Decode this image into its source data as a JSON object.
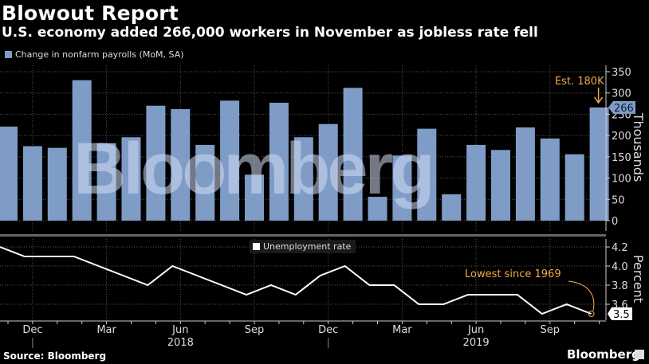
{
  "header": {
    "title": "Blowout Report",
    "subtitle": "U.S. economy added 266,000 workers in November as jobless rate fell"
  },
  "legend": {
    "payrolls": "Change in nonfarm payrolls (MoM, SA)",
    "unemployment": "Unemployment rate"
  },
  "annotations": {
    "estimate": "Est. 180K",
    "latest_payrolls": "266",
    "lowest": "Lowest since 1969",
    "latest_rate": "3.5"
  },
  "axes": {
    "top_ylabel": "Thousands",
    "top_ticks": [
      "350",
      "300",
      "250",
      "200",
      "150",
      "100",
      "50",
      "0"
    ],
    "bottom_ylabel": "Percent",
    "bottom_ticks": [
      "4.2",
      "4.0",
      "3.8",
      "3.6"
    ],
    "x_ticks": [
      "Dec",
      "Mar",
      "Jun",
      "Sep",
      "Dec",
      "Mar",
      "Jun",
      "Sep"
    ],
    "x_years": [
      "2018",
      "2019"
    ]
  },
  "footer": {
    "source": "Source: Bloomberg",
    "brand": "Bloomberg"
  },
  "watermark": "Bloomberg",
  "colors": {
    "bar": "#7f9cc7",
    "accent": "#f0a94a",
    "line": "#ffffff"
  },
  "chart_data": [
    {
      "type": "bar",
      "title": "Change in nonfarm payrolls (MoM, SA)",
      "ylabel": "Thousands",
      "ylim": [
        0,
        350
      ],
      "categories": [
        "Nov 2017",
        "Dec 2017",
        "Jan 2018",
        "Feb 2018",
        "Mar 2018",
        "Apr 2018",
        "May 2018",
        "Jun 2018",
        "Jul 2018",
        "Aug 2018",
        "Sep 2018",
        "Oct 2018",
        "Nov 2018",
        "Dec 2018",
        "Jan 2019",
        "Feb 2019",
        "Mar 2019",
        "Apr 2019",
        "May 2019",
        "Jun 2019",
        "Jul 2019",
        "Aug 2019",
        "Sep 2019",
        "Oct 2019",
        "Nov 2019"
      ],
      "values": [
        221,
        175,
        171,
        330,
        182,
        196,
        270,
        262,
        178,
        282,
        108,
        277,
        196,
        227,
        312,
        56,
        153,
        216,
        62,
        178,
        166,
        219,
        193,
        156,
        266
      ],
      "annotations": [
        "Est. 180K (Nov 2019)",
        "266 (latest)"
      ]
    },
    {
      "type": "line",
      "title": "Unemployment rate",
      "ylabel": "Percent",
      "ylim": [
        3.5,
        4.2
      ],
      "categories": [
        "Nov 2017",
        "Dec 2017",
        "Jan 2018",
        "Feb 2018",
        "Mar 2018",
        "Apr 2018",
        "May 2018",
        "Jun 2018",
        "Jul 2018",
        "Aug 2018",
        "Sep 2018",
        "Oct 2018",
        "Nov 2018",
        "Dec 2018",
        "Jan 2019",
        "Feb 2019",
        "Mar 2019",
        "Apr 2019",
        "May 2019",
        "Jun 2019",
        "Jul 2019",
        "Aug 2019",
        "Sep 2019",
        "Oct 2019",
        "Nov 2019"
      ],
      "values": [
        4.2,
        4.1,
        4.1,
        4.1,
        4.0,
        3.9,
        3.8,
        4.0,
        3.9,
        3.8,
        3.7,
        3.8,
        3.7,
        3.9,
        4.0,
        3.8,
        3.8,
        3.6,
        3.6,
        3.7,
        3.7,
        3.7,
        3.5,
        3.6,
        3.5
      ],
      "annotations": [
        "Lowest since 1969",
        "3.5 (latest)"
      ]
    }
  ]
}
